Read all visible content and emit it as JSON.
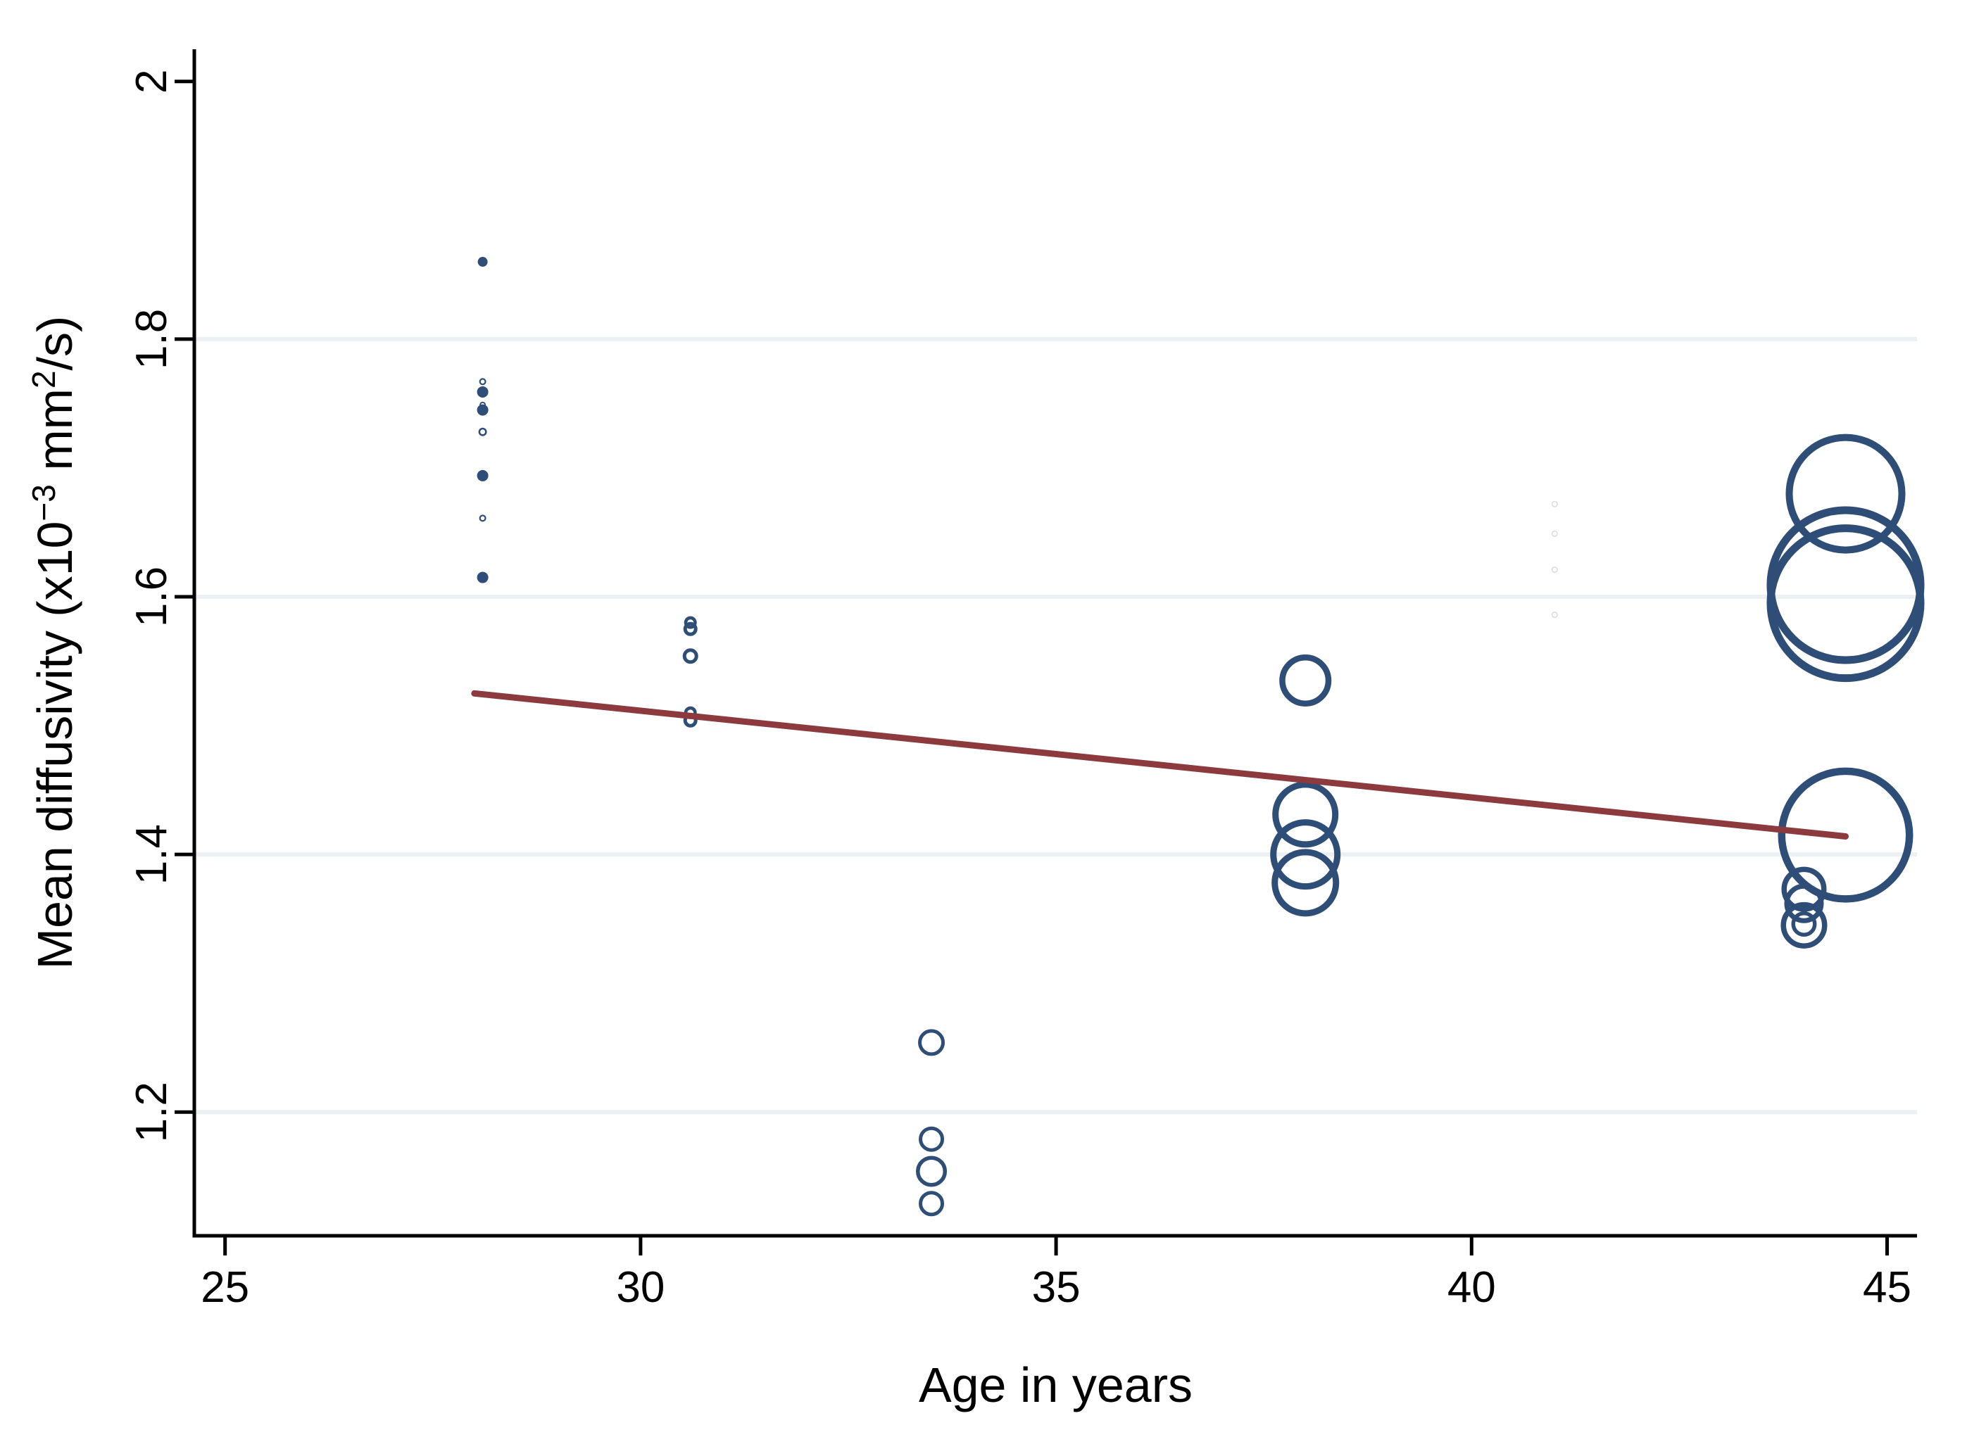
{
  "chart_data": {
    "type": "scatter",
    "variant": "weighted-bubble-with-fit",
    "title": "",
    "xlabel": "Age in years",
    "ylabel": "Mean diffusivity (x10⁻³ mm²/s)",
    "ylabel_segments": [
      {
        "text": "Mean diffusivity (x10",
        "sup": false
      },
      {
        "text": "−3",
        "sup": true
      },
      {
        "text": " mm",
        "sup": false
      },
      {
        "text": "2",
        "sup": true
      },
      {
        "text": "/s)",
        "sup": false
      }
    ],
    "xlim": [
      24.63,
      45.36
    ],
    "ylim": [
      1.104,
      2.025
    ],
    "grid_on": true,
    "legend": "none",
    "x_ticks": [
      {
        "value": 25,
        "label": "25"
      },
      {
        "value": 30,
        "label": "30"
      },
      {
        "value": 35,
        "label": "35"
      },
      {
        "value": 40,
        "label": "40"
      },
      {
        "value": 45,
        "label": "45"
      }
    ],
    "y_ticks": [
      {
        "value": 2,
        "label": "2"
      },
      {
        "value": 1.8,
        "label": "1.8"
      },
      {
        "value": 1.6,
        "label": "1.6"
      },
      {
        "value": 1.4,
        "label": "1.4"
      },
      {
        "value": 1.2,
        "label": "1.2"
      }
    ],
    "gridlines": {
      "y_values": [
        1.8,
        1.6,
        1.4,
        1.2
      ],
      "color": "#eaf0f3",
      "width": 6
    },
    "axis_color": "#000000",
    "text_color": "#000000",
    "background_color": "#ffffff",
    "series": [
      {
        "name": "mean-diffusivity-observations",
        "marker": "hollow-circle",
        "color": "#2e4d77",
        "points": [
          {
            "age": 28.1,
            "md": 1.86,
            "r": 7,
            "s": 7
          },
          {
            "age": 28.1,
            "md": 1.767,
            "r": 5,
            "s": 2.2
          },
          {
            "age": 28.1,
            "md": 1.759,
            "r": 8,
            "s": 8
          },
          {
            "age": 28.1,
            "md": 1.749,
            "r": 4.5,
            "s": 2
          },
          {
            "age": 28.1,
            "md": 1.745,
            "r": 8,
            "s": 8
          },
          {
            "age": 28.1,
            "md": 1.728,
            "r": 6,
            "s": 2.6
          },
          {
            "age": 28.1,
            "md": 1.694,
            "r": 8,
            "s": 8
          },
          {
            "age": 28.1,
            "md": 1.661,
            "r": 5,
            "s": 2.2
          },
          {
            "age": 28.1,
            "md": 1.615,
            "r": 8,
            "s": 8
          },
          {
            "age": 30.6,
            "md": 1.58,
            "r": 9,
            "s": 4.6
          },
          {
            "age": 30.6,
            "md": 1.575,
            "r": 10,
            "s": 5
          },
          {
            "age": 30.6,
            "md": 1.554,
            "r": 11,
            "s": 5
          },
          {
            "age": 30.6,
            "md": 1.51,
            "r": 9,
            "s": 4.6
          },
          {
            "age": 30.6,
            "md": 1.504,
            "r": 10,
            "s": 5
          },
          {
            "age": 33.5,
            "md": 1.254,
            "r": 19,
            "s": 5
          },
          {
            "age": 33.5,
            "md": 1.179,
            "r": 18,
            "s": 5
          },
          {
            "age": 33.5,
            "md": 1.154,
            "r": 22,
            "s": 5.5
          },
          {
            "age": 33.5,
            "md": 1.129,
            "r": 18,
            "s": 5
          },
          {
            "age": 38.0,
            "md": 1.535,
            "r": 37,
            "s": 8.5
          },
          {
            "age": 38.0,
            "md": 1.431,
            "r": 47,
            "s": 9
          },
          {
            "age": 38.0,
            "md": 1.4,
            "r": 50,
            "s": 9
          },
          {
            "age": 38.0,
            "md": 1.378,
            "r": 48,
            "s": 9
          },
          {
            "age": 44.0,
            "md": 1.373,
            "r": 32,
            "s": 7.5
          },
          {
            "age": 44.0,
            "md": 1.362,
            "r": 28,
            "s": 7
          },
          {
            "age": 44.0,
            "md": 1.346,
            "r": 18,
            "s": 5.5
          },
          {
            "age": 44.0,
            "md": 1.345,
            "r": 33,
            "s": 7.5
          },
          {
            "age": 44.5,
            "md": 1.68,
            "r": 85,
            "s": 10
          },
          {
            "age": 44.5,
            "md": 1.609,
            "r": 112,
            "s": 11
          },
          {
            "age": 44.5,
            "md": 1.595,
            "r": 112,
            "s": 11
          },
          {
            "age": 44.5,
            "md": 1.415,
            "r": 96,
            "s": 10.5
          }
        ]
      },
      {
        "name": "faint-background-observations",
        "marker": "hollow-circle",
        "color": "#d9dde1",
        "points": [
          {
            "age": 41.0,
            "md": 1.672,
            "r": 4.5,
            "s": 1.6
          },
          {
            "age": 41.0,
            "md": 1.649,
            "r": 4.5,
            "s": 1.6
          },
          {
            "age": 41.0,
            "md": 1.621,
            "r": 4.5,
            "s": 1.6
          },
          {
            "age": 41.0,
            "md": 1.586,
            "r": 4.5,
            "s": 1.6
          }
        ]
      }
    ],
    "fit_line": {
      "name": "linear-fit-line",
      "color": "#8d3a3e",
      "width": 9,
      "x1": 28.0,
      "y1": 1.525,
      "x2": 44.5,
      "y2": 1.414
    }
  }
}
